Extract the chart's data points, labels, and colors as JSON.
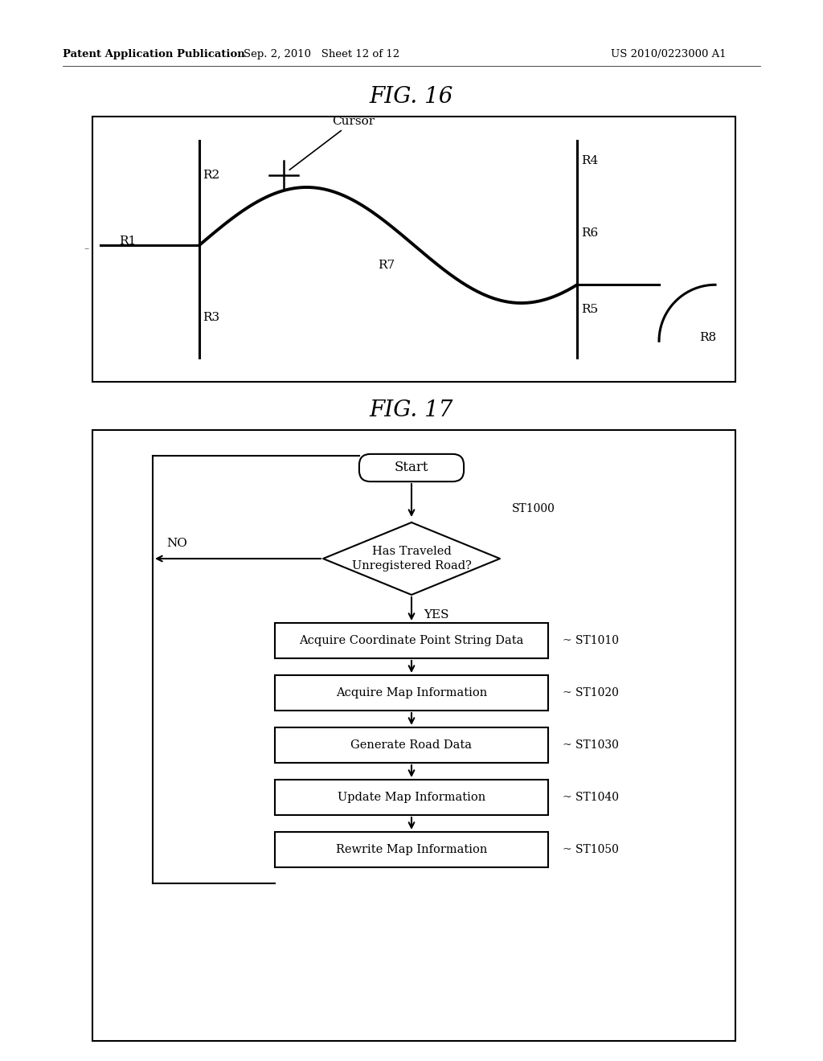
{
  "fig_title": "FIG. 16",
  "fig17_title": "FIG. 17",
  "header_left": "Patent Application Publication",
  "header_mid": "Sep. 2, 2010   Sheet 12 of 12",
  "header_right": "US 2010/0223000 A1",
  "bg_color": "#ffffff",
  "flowchart": {
    "start_label": "Start",
    "diamond_label": "Has Traveled\nUnregistered Road?",
    "diamond_step": "ST1000",
    "no_label": "NO",
    "yes_label": "YES",
    "boxes": [
      {
        "label": "Acquire Coordinate Point String Data",
        "step": "ST1010"
      },
      {
        "label": "Acquire Map Information",
        "step": "ST1020"
      },
      {
        "label": "Generate Road Data",
        "step": "ST1030"
      },
      {
        "label": "Update Map Information",
        "step": "ST1040"
      },
      {
        "label": "Rewrite Map Information",
        "step": "ST1050"
      }
    ]
  }
}
